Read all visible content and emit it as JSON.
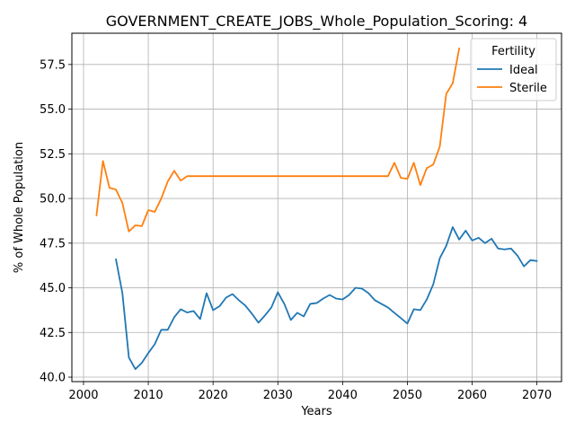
{
  "chart_data": {
    "type": "line",
    "title": "GOVERNMENT_CREATE_JOBS_Whole_Population_Scoring: 4",
    "xlabel": "Years",
    "ylabel": "% of Whole Population",
    "xlim": [
      1998.2,
      2073.8
    ],
    "ylim": [
      39.75,
      59.25
    ],
    "xticks": [
      2000,
      2010,
      2020,
      2030,
      2040,
      2050,
      2060,
      2070
    ],
    "xtick_labels": [
      "2000",
      "2010",
      "2020",
      "2030",
      "2040",
      "2050",
      "2060",
      "2070"
    ],
    "yticks": [
      40.0,
      42.5,
      45.0,
      47.5,
      50.0,
      52.5,
      55.0,
      57.5
    ],
    "ytick_labels": [
      "40.0",
      "42.5",
      "45.0",
      "47.5",
      "50.0",
      "52.5",
      "55.0",
      "57.5"
    ],
    "grid": true,
    "legend": {
      "title": "Fertility",
      "placement": "upper right"
    },
    "series": [
      {
        "name": "Ideal",
        "color": "#1f77b4",
        "x": [
          2005,
          2006,
          2007,
          2008,
          2009,
          2010,
          2011,
          2012,
          2013,
          2014,
          2015,
          2016,
          2017,
          2018,
          2019,
          2020,
          2021,
          2022,
          2023,
          2024,
          2025,
          2026,
          2027,
          2028,
          2029,
          2030,
          2031,
          2032,
          2033,
          2034,
          2035,
          2036,
          2037,
          2038,
          2039,
          2040,
          2041,
          2042,
          2043,
          2044,
          2045,
          2046,
          2047,
          2048,
          2049,
          2050,
          2051,
          2052,
          2053,
          2054,
          2055,
          2056,
          2057,
          2058,
          2059,
          2060,
          2061,
          2062,
          2063,
          2064,
          2065,
          2066,
          2067,
          2068,
          2069,
          2070
        ],
        "y": [
          46.6,
          44.7,
          41.1,
          40.45,
          40.8,
          41.35,
          41.85,
          42.65,
          42.65,
          43.35,
          43.8,
          43.62,
          43.7,
          43.25,
          44.7,
          43.75,
          43.97,
          44.45,
          44.65,
          44.3,
          44.0,
          43.55,
          43.05,
          43.45,
          43.9,
          44.75,
          44.1,
          43.2,
          43.6,
          43.4,
          44.1,
          44.15,
          44.4,
          44.6,
          44.4,
          44.35,
          44.6,
          45.0,
          44.95,
          44.7,
          44.3,
          44.1,
          43.9,
          43.6,
          43.3,
          43.0,
          43.8,
          43.75,
          44.35,
          45.2,
          46.65,
          47.35,
          48.4,
          47.7,
          48.2,
          47.65,
          47.8,
          47.5,
          47.75,
          47.2,
          47.15,
          47.2,
          46.8,
          46.2,
          46.55,
          46.5
        ]
      },
      {
        "name": "Sterile",
        "color": "#ff7f0e",
        "x": [
          2002,
          2003,
          2004,
          2005,
          2006,
          2007,
          2008,
          2009,
          2010,
          2011,
          2012,
          2013,
          2014,
          2015,
          2016,
          2017,
          2018,
          2019,
          2020,
          2021,
          2022,
          2023,
          2024,
          2025,
          2026,
          2027,
          2028,
          2029,
          2030,
          2031,
          2032,
          2033,
          2034,
          2035,
          2036,
          2037,
          2038,
          2039,
          2040,
          2041,
          2042,
          2043,
          2044,
          2045,
          2046,
          2047,
          2048,
          2049,
          2050,
          2051,
          2052,
          2053,
          2054,
          2055,
          2056,
          2057,
          2058
        ],
        "y": [
          49.05,
          52.1,
          50.6,
          50.5,
          49.75,
          48.15,
          48.5,
          48.45,
          49.35,
          49.25,
          50.0,
          50.95,
          51.55,
          51.0,
          51.25,
          51.25,
          51.25,
          51.25,
          51.25,
          51.25,
          51.25,
          51.25,
          51.25,
          51.25,
          51.25,
          51.25,
          51.25,
          51.25,
          51.25,
          51.25,
          51.25,
          51.25,
          51.25,
          51.25,
          51.25,
          51.25,
          51.25,
          51.25,
          51.25,
          51.25,
          51.25,
          51.25,
          51.25,
          51.25,
          51.25,
          51.25,
          52.0,
          51.15,
          51.1,
          52.0,
          50.75,
          51.7,
          51.9,
          52.9,
          55.85,
          56.45,
          58.4
        ]
      }
    ]
  }
}
